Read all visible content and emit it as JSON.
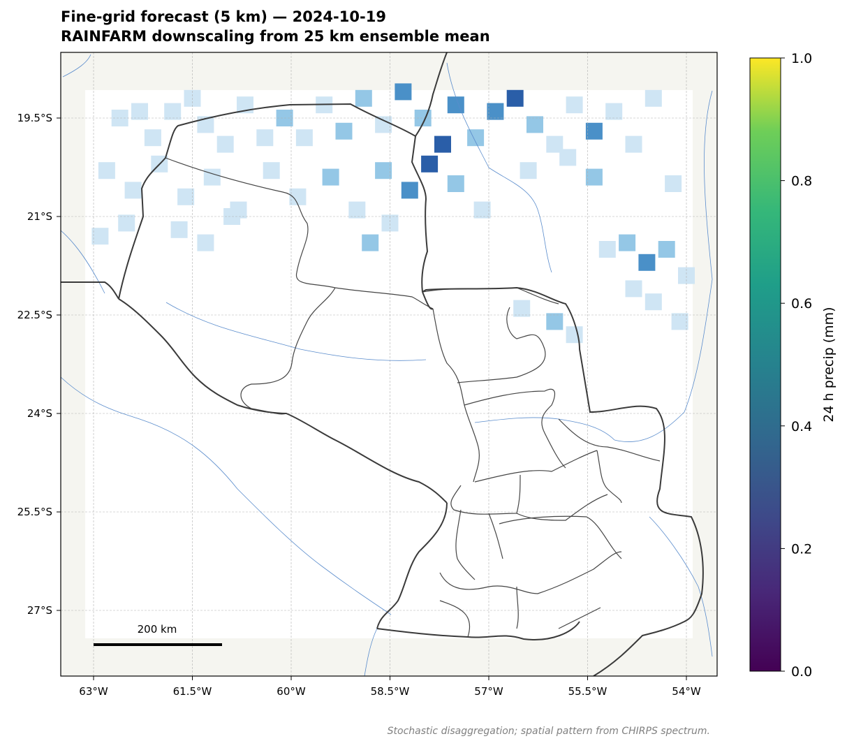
{
  "title": "Fine-grid forecast (5 km) — 2024-10-19",
  "subtitle": "RAINFARM downscaling from 25 km ensemble mean",
  "footnote": "Stochastic disaggregation; spatial pattern from CHIRPS spectrum.",
  "scale_bar": {
    "label": "200 km"
  },
  "colors": {
    "land": "#f5f5f0",
    "domain_fill": "#ffffff",
    "rivers": "#5a8ccc",
    "international_border": "#3a3a3a",
    "admin_border": "#444444",
    "gridlines": "#b0b0b0",
    "precip_classes": [
      "#cfe5f4",
      "#94c7e6",
      "#4a90c8",
      "#2a5ea8",
      "#1b3f8f"
    ]
  },
  "map": {
    "lon_range": [
      -63.5,
      -53.5
    ],
    "lat_range": [
      -18.5,
      -28.0
    ],
    "lon_ticks": [
      "63°W",
      "61.5°W",
      "60°W",
      "58.5°W",
      "57°W",
      "55.5°W",
      "54°W"
    ],
    "lat_ticks": [
      "19.5°S",
      "21°S",
      "22.5°S",
      "24°S",
      "25.5°S",
      "27°S"
    ],
    "precip_cells_lon_lat_class": [
      [
        -62.6,
        -19.5,
        0
      ],
      [
        -62.3,
        -19.4,
        0
      ],
      [
        -62.1,
        -19.8,
        0
      ],
      [
        -61.8,
        -19.4,
        0
      ],
      [
        -61.5,
        -19.2,
        0
      ],
      [
        -61.3,
        -19.6,
        0
      ],
      [
        -61.0,
        -19.9,
        0
      ],
      [
        -60.7,
        -19.3,
        0
      ],
      [
        -60.4,
        -19.8,
        0
      ],
      [
        -60.1,
        -19.5,
        1
      ],
      [
        -59.8,
        -19.8,
        0
      ],
      [
        -59.5,
        -19.3,
        0
      ],
      [
        -59.2,
        -19.7,
        1
      ],
      [
        -58.9,
        -19.2,
        1
      ],
      [
        -58.6,
        -19.6,
        0
      ],
      [
        -58.3,
        -19.1,
        2
      ],
      [
        -58.0,
        -19.5,
        1
      ],
      [
        -57.7,
        -19.9,
        3
      ],
      [
        -57.5,
        -19.3,
        2
      ],
      [
        -57.2,
        -19.8,
        1
      ],
      [
        -56.9,
        -19.4,
        2
      ],
      [
        -56.6,
        -19.2,
        3
      ],
      [
        -56.3,
        -19.6,
        1
      ],
      [
        -56.0,
        -19.9,
        0
      ],
      [
        -55.7,
        -19.3,
        0
      ],
      [
        -55.4,
        -19.7,
        2
      ],
      [
        -55.1,
        -19.4,
        0
      ],
      [
        -54.8,
        -19.9,
        0
      ],
      [
        -54.5,
        -19.2,
        0
      ],
      [
        -62.8,
        -20.3,
        0
      ],
      [
        -62.4,
        -20.6,
        0
      ],
      [
        -62.0,
        -20.2,
        0
      ],
      [
        -61.6,
        -20.7,
        0
      ],
      [
        -61.2,
        -20.4,
        0
      ],
      [
        -60.8,
        -20.9,
        0
      ],
      [
        -60.3,
        -20.3,
        0
      ],
      [
        -59.9,
        -20.7,
        0
      ],
      [
        -59.4,
        -20.4,
        1
      ],
      [
        -59.0,
        -20.9,
        0
      ],
      [
        -58.6,
        -20.3,
        1
      ],
      [
        -58.2,
        -20.6,
        2
      ],
      [
        -57.9,
        -20.2,
        3
      ],
      [
        -57.5,
        -20.5,
        1
      ],
      [
        -57.1,
        -20.9,
        0
      ],
      [
        -56.4,
        -20.3,
        0
      ],
      [
        -55.8,
        -20.1,
        0
      ],
      [
        -55.4,
        -20.4,
        1
      ],
      [
        -54.2,
        -20.5,
        0
      ],
      [
        -62.9,
        -21.3,
        0
      ],
      [
        -62.5,
        -21.1,
        0
      ],
      [
        -61.7,
        -21.2,
        0
      ],
      [
        -61.3,
        -21.4,
        0
      ],
      [
        -60.9,
        -21.0,
        0
      ],
      [
        -58.8,
        -21.4,
        1
      ],
      [
        -58.5,
        -21.1,
        0
      ],
      [
        -55.2,
        -21.5,
        0
      ],
      [
        -54.9,
        -21.4,
        1
      ],
      [
        -54.6,
        -21.7,
        2
      ],
      [
        -54.3,
        -21.5,
        1
      ],
      [
        -54.0,
        -21.9,
        0
      ],
      [
        -54.8,
        -22.1,
        0
      ],
      [
        -54.5,
        -22.3,
        0
      ],
      [
        -56.0,
        -22.6,
        1
      ],
      [
        -55.7,
        -22.8,
        0
      ],
      [
        -54.1,
        -22.6,
        0
      ],
      [
        -56.5,
        -22.4,
        0
      ]
    ]
  },
  "colorbar": {
    "label": "24 h precip (mm)",
    "range": [
      0.0,
      1.0
    ],
    "ticks": [
      "0.0",
      "0.2",
      "0.4",
      "0.6",
      "0.8",
      "1.0"
    ]
  }
}
